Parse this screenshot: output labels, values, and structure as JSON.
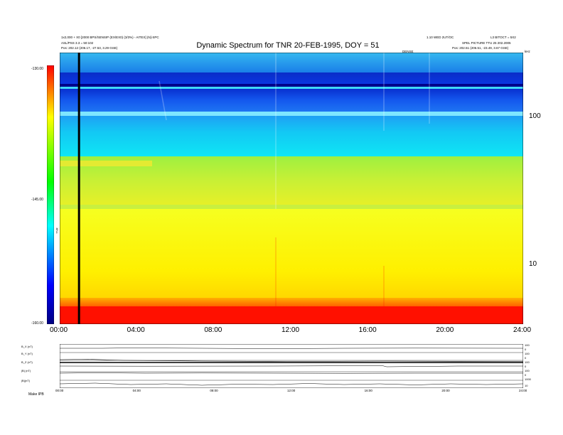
{
  "title": "Dynamic Spectrum for TNR 20-FEB-1995, DOY = 51",
  "header": {
    "left_line1": "1x2,000 + X0 [2000 BPS/SENSIP (EX/EX0) (3/3%) - AITEX] (N]-SPC",
    "left_line2": "ASL/PSS 3.3 = 50:102",
    "left_line3": "Pos:   202.12 (206.17, -27.53, 3.29 GSE)",
    "right_line1": "1.10 WED 2UT/OC",
    "right_line1b": "L3 BITOCT = 5X2",
    "right_line2": "SPEL PICTURE  TTU 25 202.2005",
    "right_line3": "Pos:   202.51 (206.51, -23.49, 3.67 GSE)",
    "orbit_marker": "DENSE",
    "hz_label": "kHz"
  },
  "colorbar": {
    "labels": [
      "-130.00",
      "-145.00",
      "-160.00"
    ],
    "unit": "TNR"
  },
  "chart_data": {
    "type": "heatmap",
    "title": "Dynamic Spectrum for TNR 20-FEB-1995, DOY = 51",
    "x_ticks": [
      "00:00",
      "04:00",
      "08:00",
      "12:00",
      "16:00",
      "20:00",
      "24:00"
    ],
    "x_range_hours": [
      0,
      24
    ],
    "y_scale": "log",
    "y_ticks": [
      "100",
      "10"
    ],
    "y_unit": "kHz",
    "color_range": [
      -160.0,
      -130.0
    ],
    "colormap": [
      "#000080",
      "#0000ff",
      "#00ffff",
      "#00ff00",
      "#ffff00",
      "#ff0000"
    ],
    "marker_line_hour": 1.0,
    "bands": [
      {
        "from_khz": 240,
        "to_khz": 190,
        "level": -140
      },
      {
        "from_khz": 190,
        "to_khz": 175,
        "level": -131
      },
      {
        "from_khz": 175,
        "to_khz": 160,
        "level": -130
      },
      {
        "from_khz": 160,
        "to_khz": 150,
        "level": -138
      },
      {
        "from_khz": 150,
        "to_khz": 100,
        "level": -131
      },
      {
        "from_khz": 100,
        "to_khz": 92,
        "level": -140
      },
      {
        "from_khz": 92,
        "to_khz": 50,
        "level": -139
      },
      {
        "from_khz": 50,
        "to_khz": 23,
        "level": -145
      },
      {
        "from_khz": 23,
        "to_khz": 8,
        "level": -148
      },
      {
        "from_khz": 8,
        "to_khz": 5,
        "level": -156
      }
    ]
  },
  "lower_panel": {
    "lanes": [
      "B_X (nT)",
      "B_Y (nT)",
      "B_Z (nT)",
      "|B| (nT)",
      "|B|(nT)"
    ],
    "right_scales": [
      "100",
      "0",
      "100",
      "0",
      "100",
      "0",
      "100",
      "0",
      "1000",
      "10"
    ],
    "x_ticks": [
      "00:00",
      "04:00",
      "08:00",
      "12:00",
      "16:00",
      "20:00",
      "24:00"
    ],
    "footer": "Make    IPB"
  }
}
